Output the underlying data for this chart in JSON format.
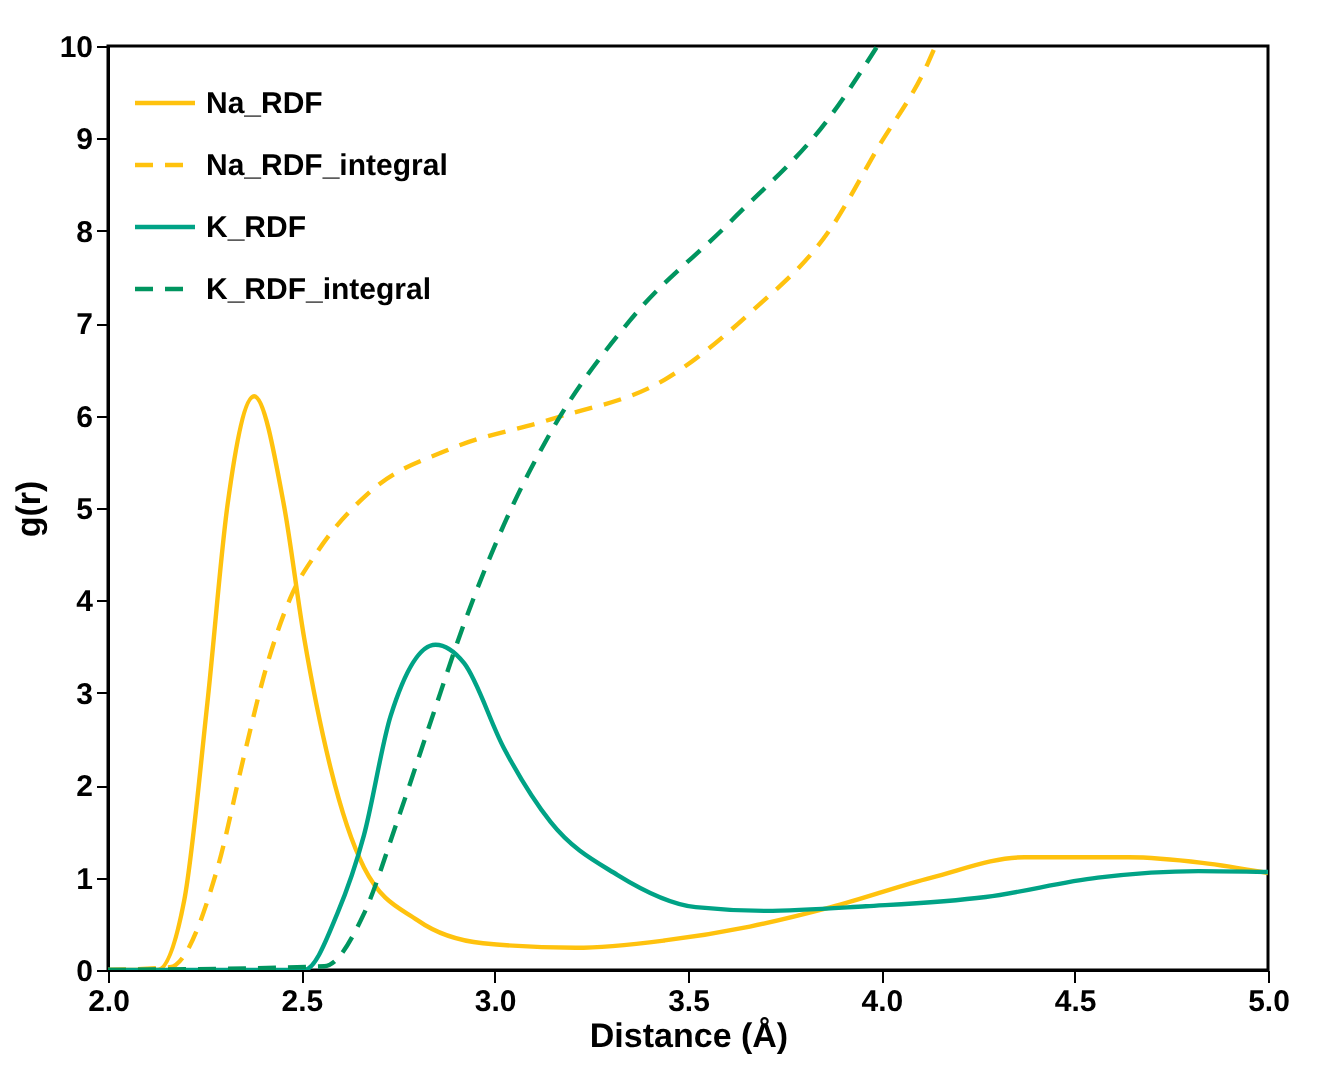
{
  "chart_data": {
    "type": "line",
    "xlabel": "Distance (Å)",
    "ylabel": "g(r)",
    "xlim": [
      2.0,
      5.0
    ],
    "xticks": [
      {
        "value": 2.0,
        "label": "2.0"
      },
      2.5,
      {
        "value": 3.0,
        "label": "3.0"
      },
      3.5,
      {
        "value": 4.0,
        "label": "4.0"
      },
      4.5,
      {
        "value": 5.0,
        "label": "5.0"
      }
    ],
    "ylim": [
      0,
      10
    ],
    "yticks": [
      0,
      1,
      2,
      3,
      4,
      5,
      6,
      7,
      8,
      9,
      10
    ],
    "grid": false,
    "legend": "top left",
    "marker": "none",
    "series": [
      {
        "name": "Na_RDF",
        "color": "#ffc20e",
        "line_style": "solid",
        "x": [
          2.0,
          2.128,
          2.197,
          2.257,
          2.309,
          2.378,
          2.455,
          2.507,
          2.576,
          2.662,
          2.8,
          2.97,
          3.21,
          3.44,
          3.66,
          3.87,
          4.13,
          4.37,
          4.64,
          4.83,
          5.0
        ],
        "values": [
          0,
          0,
          0.75,
          2.89,
          5.03,
          6.21,
          5.03,
          3.6,
          2.18,
          1.11,
          0.54,
          0.29,
          0.24,
          0.32,
          0.47,
          0.68,
          1.0,
          1.22,
          1.22,
          1.16,
          1.05
        ]
      },
      {
        "name": "Na_RDF_integral",
        "color": "#ffc20e",
        "line_style": "dashed",
        "x": [
          2.0,
          2.16,
          2.283,
          2.352,
          2.403,
          2.472,
          2.542,
          2.679,
          2.886,
          3.145,
          3.44,
          3.66,
          3.87,
          3.99,
          4.12,
          4.14
        ],
        "values": [
          0,
          0.03,
          1.1,
          2.32,
          3.18,
          4.03,
          4.53,
          5.18,
          5.64,
          5.96,
          6.39,
          7.11,
          8.03,
          8.89,
          9.81,
          10.0
        ]
      },
      {
        "name": "K_RDF",
        "color": "#00a386",
        "line_style": "solid",
        "x": [
          2.0,
          2.507,
          2.593,
          2.662,
          2.731,
          2.847,
          2.921,
          3.024,
          3.145,
          3.317,
          3.52,
          3.7,
          3.96,
          4.27,
          4.56,
          4.82,
          5.0
        ],
        "values": [
          0,
          0,
          0.61,
          1.46,
          2.75,
          3.52,
          3.32,
          2.4,
          1.6,
          1.03,
          0.68,
          0.64,
          0.69,
          0.79,
          1.0,
          1.07,
          1.06
        ]
      },
      {
        "name": "K_RDF_integral",
        "color": "#00955f",
        "line_style": "dashed",
        "x": [
          2.0,
          2.559,
          2.662,
          2.748,
          2.834,
          2.921,
          3.024,
          3.145,
          3.35,
          3.61,
          3.87,
          3.99
        ],
        "values": [
          0,
          0.04,
          0.61,
          1.61,
          2.68,
          3.75,
          4.82,
          5.82,
          7.03,
          8.1,
          9.25,
          10.0
        ]
      }
    ]
  }
}
